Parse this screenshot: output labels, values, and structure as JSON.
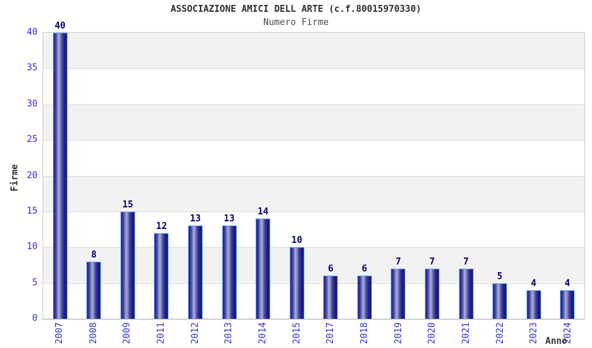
{
  "header": {
    "title": "ASSOCIAZIONE AMICI DELL ARTE (c.f.80015970330)",
    "subtitle": "Numero Firme"
  },
  "axes": {
    "y_label": "Firme",
    "x_label": "Anno",
    "y_ticks": [
      0,
      5,
      10,
      15,
      20,
      25,
      30,
      35,
      40
    ]
  },
  "chart_data": {
    "type": "bar",
    "title": "ASSOCIAZIONE AMICI DELL ARTE (c.f.80015970330)",
    "subtitle": "Numero Firme",
    "xlabel": "Anno",
    "ylabel": "Firme",
    "categories": [
      "2007",
      "2008",
      "2009",
      "2011",
      "2012",
      "2013",
      "2014",
      "2015",
      "2017",
      "2018",
      "2019",
      "2020",
      "2021",
      "2022",
      "2023",
      "2024"
    ],
    "values": [
      40,
      8,
      15,
      12,
      13,
      13,
      14,
      10,
      6,
      6,
      7,
      7,
      7,
      5,
      4,
      4
    ],
    "ylim": [
      0,
      40
    ],
    "ytick_step": 5,
    "grid": "horizontal-bands",
    "legend": "none",
    "colors": {
      "bar_dark": "#1a1a7c",
      "bar_highlight": "#adb2da",
      "bar_border": "#5f9be6",
      "tick_label": "#3333cc",
      "value_label": "#00006b",
      "band_gray": "#f2f2f2",
      "band_white": "#ffffff",
      "gridline": "#dcdcdc",
      "title_text": "#2e2e2e",
      "subtitle_text": "#4d4d4d"
    }
  }
}
